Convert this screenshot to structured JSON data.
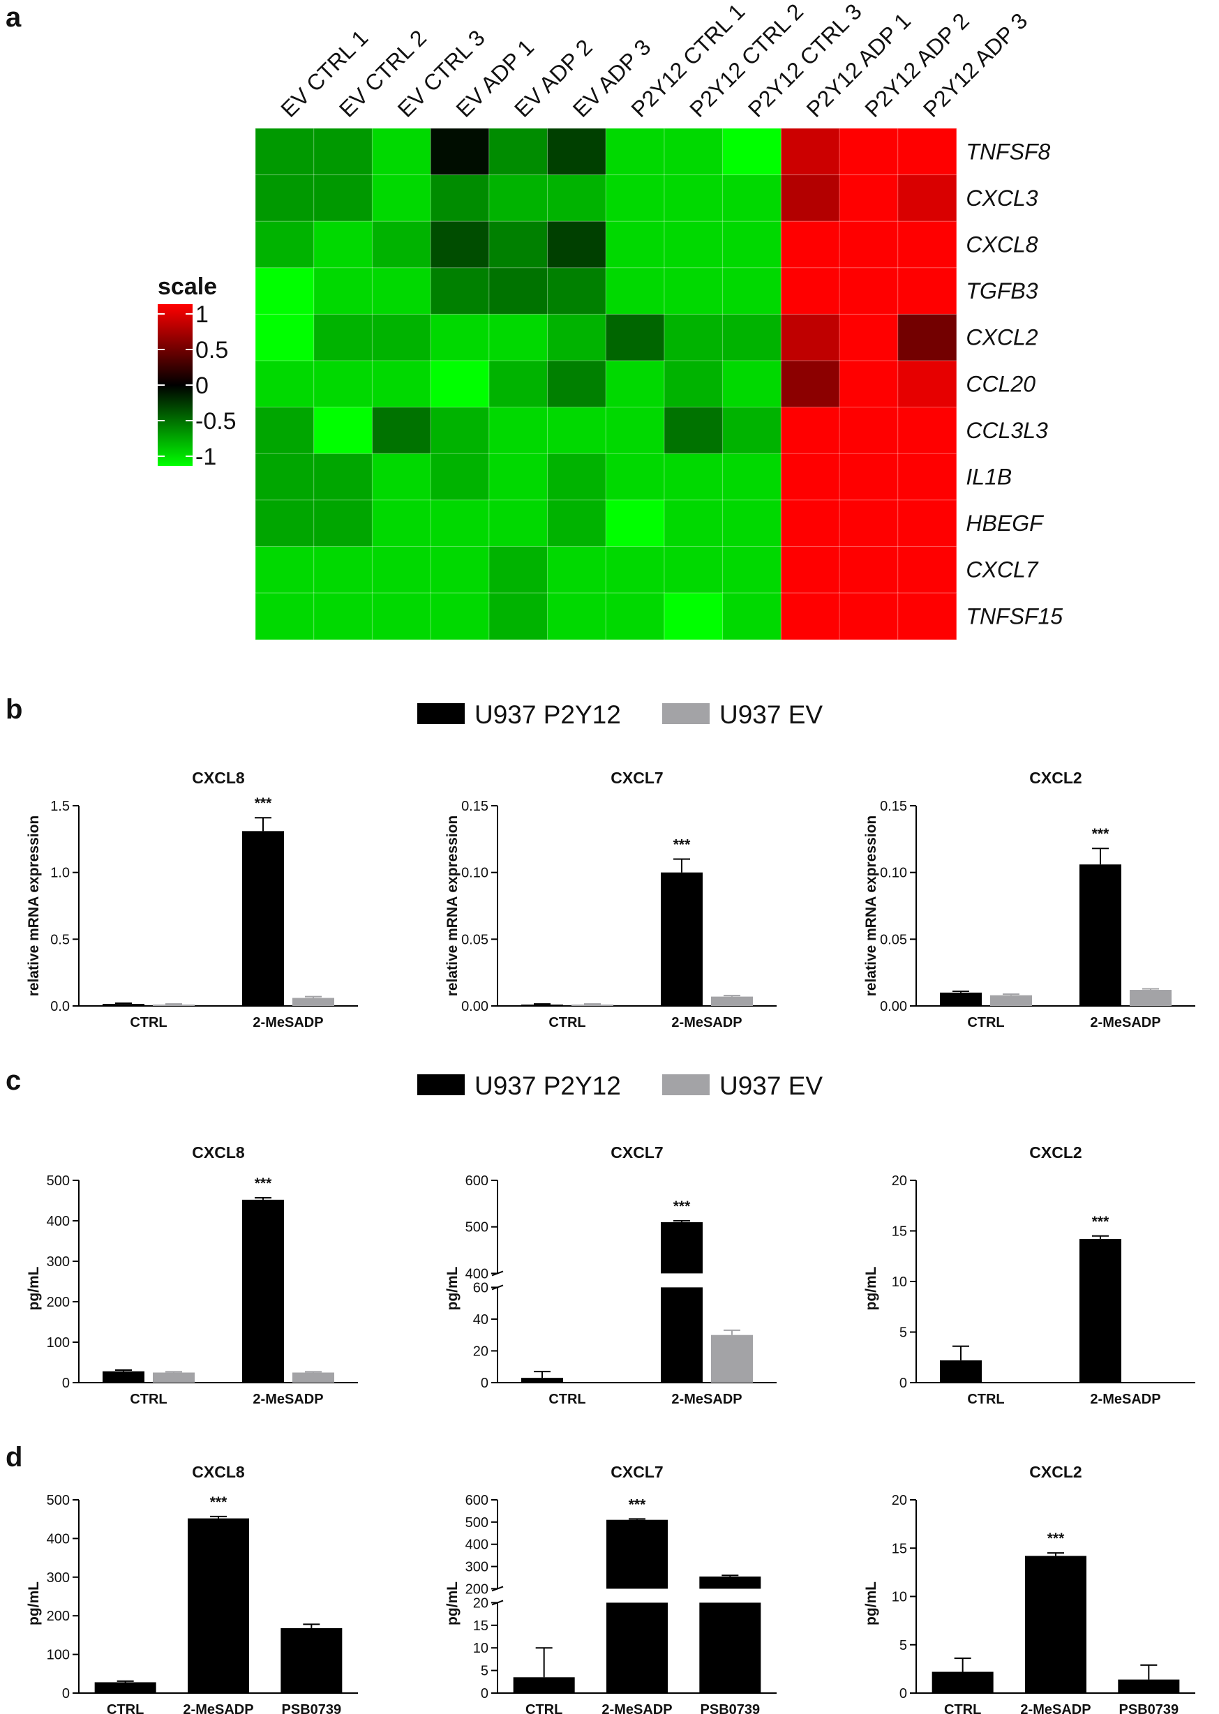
{
  "panel_labels": {
    "a": "a",
    "b": "b",
    "c": "c",
    "d": "d"
  },
  "chart_data": [
    {
      "type": "heatmap",
      "panel": "a",
      "columns": [
        "EV CTRL 1",
        "EV CTRL 2",
        "EV CTRL 3",
        "EV ADP 1",
        "EV ADP 2",
        "EV ADP 3",
        "P2Y12 CTRL 1",
        "P2Y12 CTRL 2",
        "P2Y12 CTRL 3",
        "P2Y12 ADP 1",
        "P2Y12 ADP 2",
        "P2Y12 ADP 3"
      ],
      "rows": [
        "TNFSF8",
        "CXCL3",
        "CXCL8",
        "TGFB3",
        "CXCL2",
        "CCL20",
        "CCL3L3",
        "IL1B",
        "HBEGF",
        "CXCL7",
        "TNFSF15"
      ],
      "values": [
        [
          -0.6,
          -0.6,
          -0.85,
          -0.05,
          -0.55,
          -0.25,
          -0.85,
          -0.85,
          -1.0,
          0.8,
          1.0,
          1.0
        ],
        [
          -0.6,
          -0.6,
          -0.85,
          -0.55,
          -0.7,
          -0.7,
          -0.85,
          -0.85,
          -0.85,
          0.7,
          1.0,
          0.85
        ],
        [
          -0.7,
          -0.85,
          -0.7,
          -0.3,
          -0.5,
          -0.25,
          -0.85,
          -0.85,
          -0.85,
          1.0,
          1.0,
          1.0
        ],
        [
          -1.0,
          -0.85,
          -0.85,
          -0.5,
          -0.45,
          -0.5,
          -0.85,
          -0.85,
          -0.85,
          1.0,
          1.0,
          1.0
        ],
        [
          -1.0,
          -0.7,
          -0.7,
          -0.85,
          -0.85,
          -0.7,
          -0.4,
          -0.7,
          -0.7,
          0.75,
          1.0,
          0.45
        ],
        [
          -0.85,
          -0.85,
          -0.85,
          -1.0,
          -0.7,
          -0.5,
          -0.85,
          -0.7,
          -0.85,
          0.55,
          1.0,
          0.9
        ],
        [
          -0.65,
          -1.0,
          -0.45,
          -0.7,
          -0.85,
          -0.85,
          -0.85,
          -0.45,
          -0.7,
          1.0,
          1.0,
          1.0
        ],
        [
          -0.65,
          -0.65,
          -0.85,
          -0.7,
          -0.85,
          -0.7,
          -0.85,
          -0.85,
          -0.85,
          1.0,
          1.0,
          1.0
        ],
        [
          -0.65,
          -0.65,
          -0.85,
          -0.85,
          -0.85,
          -0.7,
          -1.0,
          -0.85,
          -0.85,
          1.0,
          1.0,
          1.0
        ],
        [
          -0.85,
          -0.85,
          -0.85,
          -0.85,
          -0.7,
          -0.85,
          -0.85,
          -0.85,
          -0.85,
          1.0,
          1.0,
          1.0
        ],
        [
          -0.85,
          -0.85,
          -0.85,
          -0.85,
          -0.7,
          -0.85,
          -0.85,
          -1.0,
          -0.85,
          1.0,
          1.0,
          1.0
        ]
      ],
      "scale": {
        "title": "scale",
        "ticks": [
          "1",
          "0.5",
          "0",
          "-0.5",
          "-1"
        ],
        "range": [
          -1,
          1
        ],
        "colors": {
          "low": "#00ff00",
          "mid": "#000000",
          "high": "#ff0000"
        }
      }
    },
    {
      "type": "bar",
      "panel": "b",
      "title": "CXCL8",
      "ylabel": "relative mRNA expression",
      "categories": [
        "CTRL",
        "2-MeSADP"
      ],
      "yticks": [
        "0.0",
        "0.5",
        "1.0",
        "1.5"
      ],
      "ylim": [
        0,
        1.5
      ],
      "series": [
        {
          "name": "U937 P2Y12",
          "values": [
            0.015,
            1.31
          ],
          "errors": [
            0.005,
            0.1
          ]
        },
        {
          "name": "U937 EV",
          "values": [
            0.01,
            0.06
          ],
          "errors": [
            0.005,
            0.01
          ]
        }
      ],
      "annotations": [
        {
          "category": "2-MeSADP",
          "series": "U937 P2Y12",
          "text": "***"
        }
      ]
    },
    {
      "type": "bar",
      "panel": "b",
      "title": "CXCL7",
      "ylabel": "relative mRNA expression",
      "categories": [
        "CTRL",
        "2-MeSADP"
      ],
      "yticks": [
        "0.00",
        "0.05",
        "0.10",
        "0.15"
      ],
      "ylim": [
        0,
        0.15
      ],
      "series": [
        {
          "name": "U937 P2Y12",
          "values": [
            0.001,
            0.1
          ],
          "errors": [
            0.0005,
            0.01
          ]
        },
        {
          "name": "U937 EV",
          "values": [
            0.001,
            0.007
          ],
          "errors": [
            0.0005,
            0.0008
          ]
        }
      ],
      "annotations": [
        {
          "category": "2-MeSADP",
          "series": "U937 P2Y12",
          "text": "***"
        }
      ]
    },
    {
      "type": "bar",
      "panel": "b",
      "title": "CXCL2",
      "ylabel": "relative mRNA expression",
      "categories": [
        "CTRL",
        "2-MeSADP"
      ],
      "yticks": [
        "0.00",
        "0.05",
        "0.10",
        "0.15"
      ],
      "ylim": [
        0,
        0.15
      ],
      "series": [
        {
          "name": "U937 P2Y12",
          "values": [
            0.01,
            0.106
          ],
          "errors": [
            0.001,
            0.012
          ]
        },
        {
          "name": "U937 EV",
          "values": [
            0.008,
            0.012
          ],
          "errors": [
            0.0008,
            0.0008
          ]
        }
      ],
      "annotations": [
        {
          "category": "2-MeSADP",
          "series": "U937 P2Y12",
          "text": "***"
        }
      ]
    },
    {
      "type": "bar",
      "panel": "c",
      "title": "CXCL8",
      "ylabel": "pg/mL",
      "categories": [
        "CTRL",
        "2-MeSADP"
      ],
      "yticks": [
        "0",
        "100",
        "200",
        "300",
        "400",
        "500"
      ],
      "ylim": [
        0,
        500
      ],
      "series": [
        {
          "name": "U937 P2Y12",
          "values": [
            28,
            452
          ],
          "errors": [
            3,
            5
          ]
        },
        {
          "name": "U937 EV",
          "values": [
            25,
            25
          ],
          "errors": [
            2,
            2
          ]
        }
      ],
      "annotations": [
        {
          "category": "2-MeSADP",
          "series": "U937 P2Y12",
          "text": "***"
        }
      ]
    },
    {
      "type": "bar",
      "panel": "c",
      "title": "CXCL7",
      "ylabel": "pg/mL",
      "categories": [
        "CTRL",
        "2-MeSADP"
      ],
      "yticks": [
        "0",
        "20",
        "40",
        "60",
        "400",
        "500",
        "600"
      ],
      "ylim": [
        0,
        600
      ],
      "axis_break": {
        "lower_max": 60,
        "upper_min": 400
      },
      "series": [
        {
          "name": "U937 P2Y12",
          "values": [
            3,
            510
          ],
          "errors": [
            4,
            3
          ]
        },
        {
          "name": "U937 EV",
          "values": [
            0,
            30
          ],
          "errors": [
            0,
            3
          ]
        }
      ],
      "annotations": [
        {
          "category": "2-MeSADP",
          "series": "U937 P2Y12",
          "text": "***"
        }
      ]
    },
    {
      "type": "bar",
      "panel": "c",
      "title": "CXCL2",
      "ylabel": "pg/mL",
      "categories": [
        "CTRL",
        "2-MeSADP"
      ],
      "yticks": [
        "0",
        "5",
        "10",
        "15",
        "20"
      ],
      "ylim": [
        0,
        20
      ],
      "series": [
        {
          "name": "U937 P2Y12",
          "values": [
            2.2,
            14.2
          ],
          "errors": [
            1.4,
            0.3
          ]
        },
        {
          "name": "U937 EV",
          "values": [
            0,
            0
          ],
          "errors": [
            0,
            0
          ]
        }
      ],
      "annotations": [
        {
          "category": "2-MeSADP",
          "series": "U937 P2Y12",
          "text": "***"
        }
      ]
    },
    {
      "type": "bar",
      "panel": "d",
      "title": "CXCL8",
      "ylabel": "pg/mL",
      "categories": [
        "CTRL",
        "2-MeSADP",
        "PSB0739"
      ],
      "yticks": [
        "0",
        "100",
        "200",
        "300",
        "400",
        "500"
      ],
      "ylim": [
        0,
        500
      ],
      "series": [
        {
          "values": [
            28,
            452,
            168
          ],
          "errors": [
            3,
            5,
            10
          ]
        }
      ],
      "annotations": [
        {
          "category": "2-MeSADP",
          "text": "***"
        }
      ]
    },
    {
      "type": "bar",
      "panel": "d",
      "title": "CXCL7",
      "ylabel": "pg/mL",
      "categories": [
        "CTRL",
        "2-MeSADP",
        "PSB0739"
      ],
      "yticks": [
        "0",
        "5",
        "10",
        "15",
        "20",
        "200",
        "300",
        "400",
        "500",
        "600"
      ],
      "ylim": [
        0,
        600
      ],
      "axis_break": {
        "lower_max": 20,
        "upper_min": 200
      },
      "series": [
        {
          "values": [
            3.5,
            510,
            255
          ],
          "errors": [
            6.5,
            4,
            5
          ]
        }
      ],
      "annotations": [
        {
          "category": "2-MeSADP",
          "text": "***"
        }
      ]
    },
    {
      "type": "bar",
      "panel": "d",
      "title": "CXCL2",
      "ylabel": "pg/mL",
      "categories": [
        "CTRL",
        "2-MeSADP",
        "PSB0739"
      ],
      "yticks": [
        "0",
        "5",
        "10",
        "15",
        "20"
      ],
      "ylim": [
        0,
        20
      ],
      "series": [
        {
          "values": [
            2.2,
            14.2,
            1.4
          ],
          "errors": [
            1.4,
            0.3,
            1.5
          ]
        }
      ],
      "annotations": [
        {
          "category": "2-MeSADP",
          "text": "***"
        }
      ]
    }
  ],
  "legend": [
    {
      "name": "U937 P2Y12",
      "color": "#000000"
    },
    {
      "name": "U937 EV",
      "color": "#a3a3a6"
    }
  ]
}
